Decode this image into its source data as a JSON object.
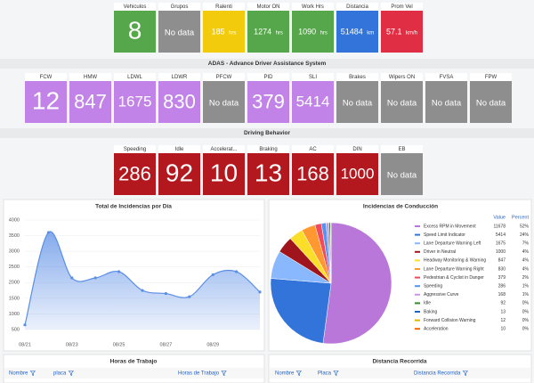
{
  "kpis": {
    "tiles": [
      {
        "label": "Vehiculos",
        "value": 8,
        "color": "#56a64b"
      },
      {
        "label": "Grupos",
        "value": "No data",
        "color": "#8e8e8e"
      },
      {
        "label": "Ralenti",
        "value": 185,
        "unit": "hrs",
        "color": "#f2cc0c"
      },
      {
        "label": "Motor ON",
        "value": 1274,
        "unit": "hrs",
        "color": "#56a64b"
      },
      {
        "label": "Work Hrs",
        "value": 1090,
        "unit": "hrs",
        "color": "#56a64b"
      },
      {
        "label": "Distancia",
        "value": 51484,
        "unit": "km",
        "color": "#3274d9"
      },
      {
        "label": "Prom Vel",
        "value": 57.1,
        "unit": "km/h",
        "color": "#e02f44"
      }
    ]
  },
  "adas": {
    "title": "ADAS - Advance Driver Assistance System",
    "tiles": [
      {
        "label": "FCW",
        "value": 12,
        "color": "#c183e8"
      },
      {
        "label": "HMW",
        "value": 847,
        "color": "#c183e8"
      },
      {
        "label": "LDWL",
        "value": 1675,
        "color": "#c183e8"
      },
      {
        "label": "LDWR",
        "value": 830,
        "color": "#c183e8"
      },
      {
        "label": "PFCW",
        "value": "No data",
        "color": "#8e8e8e"
      },
      {
        "label": "PID",
        "value": 379,
        "color": "#c183e8"
      },
      {
        "label": "SLI",
        "value": 5414,
        "color": "#c183e8"
      },
      {
        "label": "Brakes",
        "value": "No data",
        "color": "#8e8e8e"
      },
      {
        "label": "Wipers ON",
        "value": "No data",
        "color": "#8e8e8e"
      },
      {
        "label": "FVSA",
        "value": "No data",
        "color": "#8e8e8e"
      },
      {
        "label": "FPW",
        "value": "No data",
        "color": "#8e8e8e"
      }
    ]
  },
  "driving": {
    "title": "Driving Behavior",
    "tiles": [
      {
        "label": "Speeding",
        "value": 286,
        "color": "#b3181e"
      },
      {
        "label": "Idle",
        "value": 92,
        "color": "#b3181e"
      },
      {
        "label": "Accelerat...",
        "value": 10,
        "color": "#b3181e"
      },
      {
        "label": "Braking",
        "value": 13,
        "color": "#b3181e"
      },
      {
        "label": "AC",
        "value": 168,
        "color": "#b3181e"
      },
      {
        "label": "DIN",
        "value": 1000,
        "color": "#b3181e"
      },
      {
        "label": "EB",
        "value": "No data",
        "color": "#8e8e8e"
      }
    ]
  },
  "chart_data": [
    {
      "type": "line",
      "title": "Total de Incidencias por Día",
      "categories": [
        "08/21",
        null,
        "08/23",
        null,
        "08/25",
        null,
        "08/27",
        null,
        "08/29",
        null,
        null
      ],
      "values": [
        650,
        3600,
        2150,
        2150,
        2350,
        1750,
        1650,
        1550,
        2250,
        2350,
        1700
      ],
      "color": "#5b8ee6",
      "ylim": [
        500,
        4000
      ],
      "yticks": [
        500,
        1000,
        1500,
        2000,
        2500,
        3000,
        3500,
        4000
      ],
      "grid": true
    },
    {
      "type": "pie",
      "title": "Incidencias de Conducción",
      "value_header": "Value",
      "percent_header": "Percent",
      "categories": [
        "Excess RPM in Movement",
        "Speed Limit Indicator",
        "Lane Departure Warning Left",
        "Driver in Neutral",
        "Headway Monitoring & Warning",
        "Lane Departure Warning Right",
        "Pedestrian & Cyclist in Danger",
        "Speeding",
        "Aggressive Curve",
        "Idle",
        "Baking",
        "Forward Collision Warning",
        "Acceleration"
      ],
      "values": [
        11678,
        5414,
        1675,
        1000,
        847,
        830,
        379,
        286,
        168,
        92,
        13,
        12,
        10
      ],
      "percent_labels": [
        "52%",
        "24%",
        "7%",
        "4%",
        "4%",
        "4%",
        "2%",
        "1%",
        "1%",
        "0%",
        "0%",
        "0%",
        "0%"
      ],
      "colors": [
        "#b877d9",
        "#3274d9",
        "#8ab8ff",
        "#a0151c",
        "#fade2a",
        "#ff9830",
        "#f2495c",
        "#5794f2",
        "#ca95e5",
        "#37872d",
        "#1f60c4",
        "#e0b400",
        "#fa6400"
      ]
    }
  ],
  "tables": [
    {
      "title": "Horas de Trabajo",
      "columns": [
        "Nombre",
        "placa",
        "Horas de Trabajo"
      ]
    },
    {
      "title": "Distancia Recorrida",
      "columns": [
        "Nombre",
        "Placa",
        "Distancia Recorrida"
      ]
    }
  ]
}
